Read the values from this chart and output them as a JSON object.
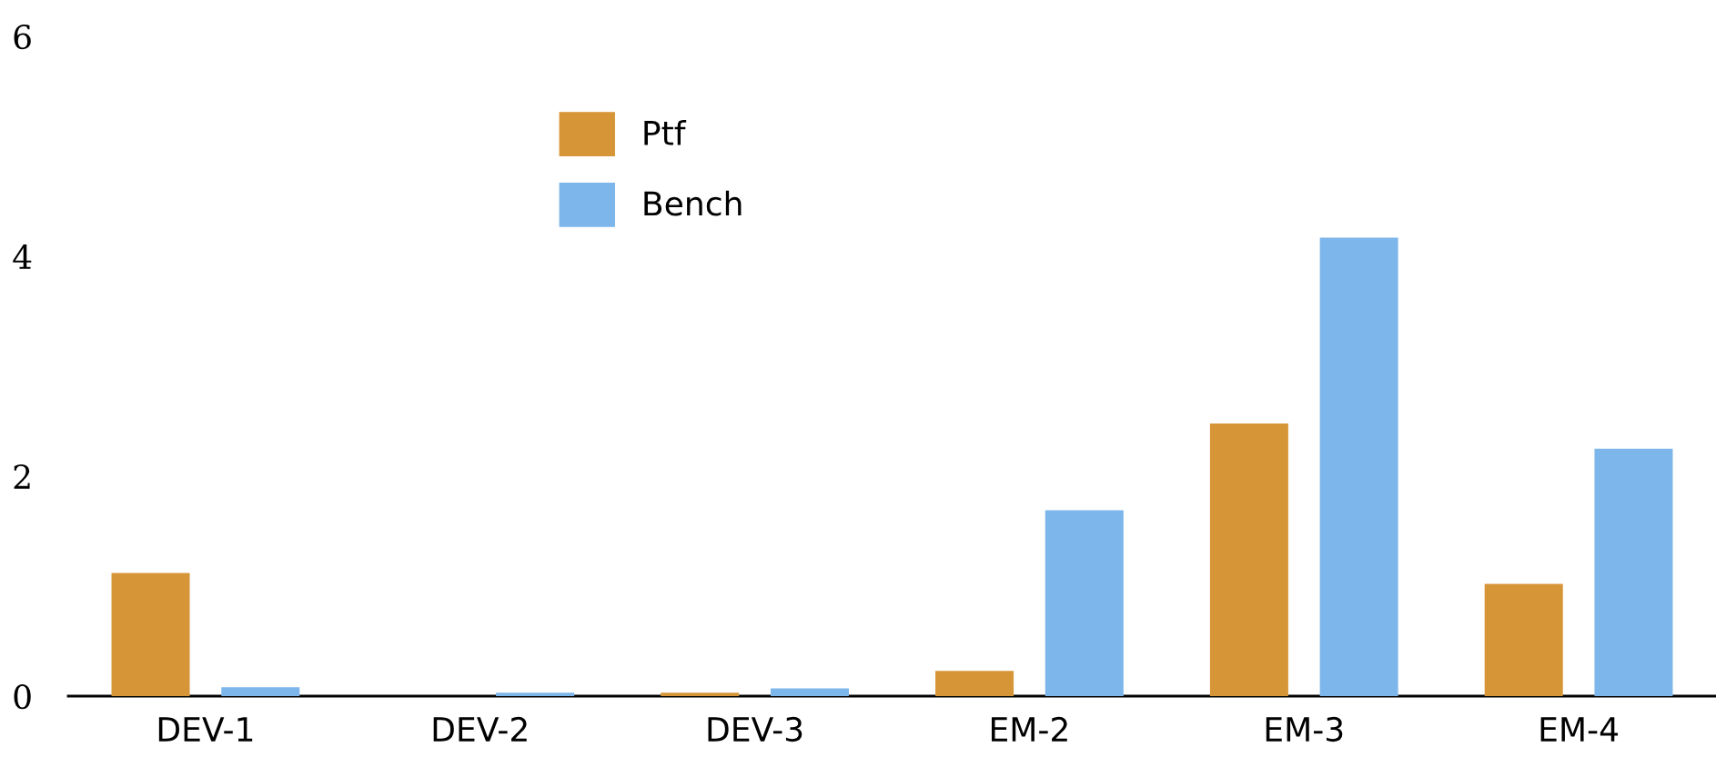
{
  "chart_data": {
    "type": "bar",
    "categories": [
      "DEV-1",
      "DEV-2",
      "DEV-3",
      "EM-2",
      "EM-3",
      "EM-4"
    ],
    "series": [
      {
        "name": "Ptf",
        "color": "#d69536",
        "values": [
          1.12,
          0,
          0.03,
          0.23,
          2.48,
          1.02
        ]
      },
      {
        "name": "Bench",
        "color": "#7db6eb",
        "values": [
          0.08,
          0.03,
          0.07,
          1.69,
          4.17,
          2.25
        ]
      }
    ],
    "ylim": [
      0,
      6
    ],
    "yticks": [
      0,
      2,
      4,
      6
    ],
    "grid": false,
    "legend": "top left"
  }
}
